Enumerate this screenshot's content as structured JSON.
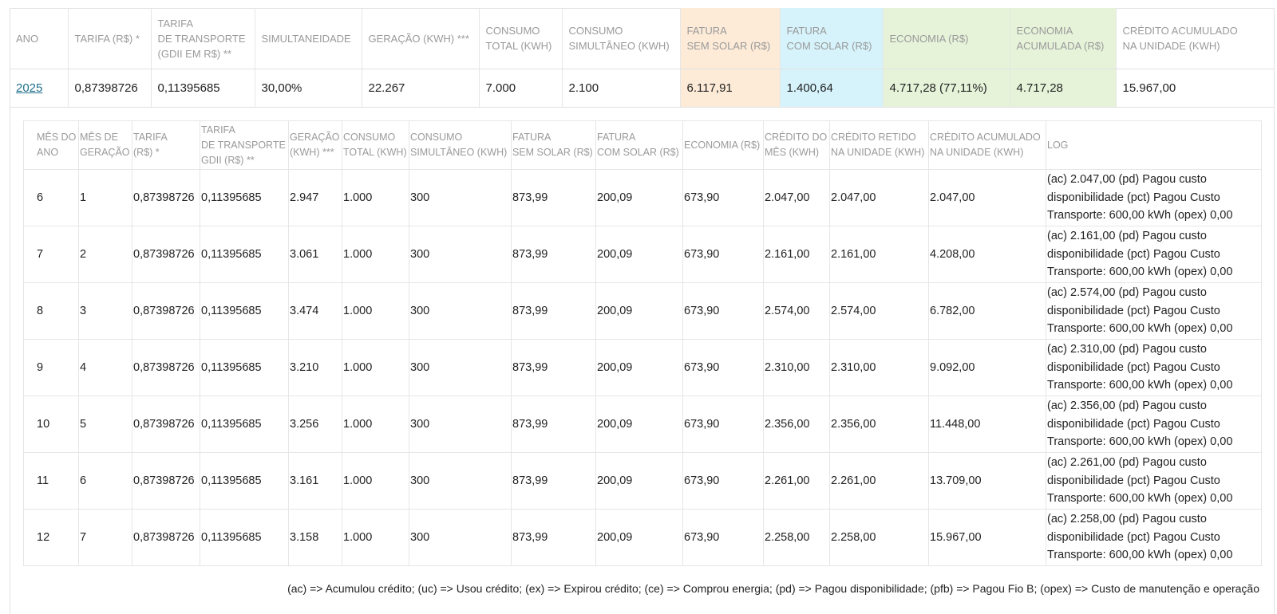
{
  "summary": {
    "headers": [
      "ANO",
      "TARIFA (R$) *",
      "TARIFA\nDE TRANSPORTE\n(GDII EM R$) **",
      "SIMULTANEIDADE",
      "GERAÇÃO (KWH) ***",
      "CONSUMO\nTOTAL (KWH)",
      "CONSUMO\nSIMULTÂNEO (KWH)",
      "FATURA\nSEM SOLAR (R$)",
      "FATURA\nCOM SOLAR (R$)",
      "ECONOMIA (R$)",
      "ECONOMIA\nACUMULADA (R$)",
      "CRÉDITO ACUMULADO\nNA UNIDADE (KWH)"
    ],
    "row": [
      "2025",
      "0,87398726",
      "0,11395685",
      "30,00%",
      "22.267",
      "7.000",
      "2.100",
      "6.117,91",
      "1.400,64",
      "4.717,28 (77,11%)",
      "4.717,28",
      "15.967,00"
    ],
    "highlight_colors": {
      "fatura_sem_solar": "#fdebd8",
      "fatura_com_solar": "#d6f3fb",
      "economia": "#e6f3d9"
    }
  },
  "detail": {
    "headers": [
      "MÊS DO\nANO",
      "MÊS DE\nGERAÇÃO",
      "TARIFA\n(R$) *",
      "TARIFA\nDE TRANSPORTE\nGDII (R$) **",
      "GERAÇÃO\n(KWH) ***",
      "CONSUMO\nTOTAL (KWH)",
      "CONSUMO\nSIMULTÂNEO (KWH)",
      "FATURA\nSEM SOLAR (R$)",
      "FATURA\nCOM SOLAR (R$)",
      "ECONOMIA (R$)",
      "CRÉDITO DO\nMÊS (KWH)",
      "CRÉDITO RETIDO\nNA UNIDADE (KWH)",
      "CRÉDITO ACUMULADO\nNA UNIDADE (KWH)",
      "LOG"
    ],
    "rows": [
      [
        "6",
        "1",
        "0,87398726",
        "0,11395685",
        "2.947",
        "1.000",
        "300",
        "873,99",
        "200,09",
        "673,90",
        "2.047,00",
        "2.047,00",
        "2.047,00",
        "(ac) 2.047,00 (pd) Pagou custo disponibilidade (pct) Pagou Custo Transporte: 600,00 kWh (opex) 0,00"
      ],
      [
        "7",
        "2",
        "0,87398726",
        "0,11395685",
        "3.061",
        "1.000",
        "300",
        "873,99",
        "200,09",
        "673,90",
        "2.161,00",
        "2.161,00",
        "4.208,00",
        "(ac) 2.161,00 (pd) Pagou custo disponibilidade (pct) Pagou Custo Transporte: 600,00 kWh (opex) 0,00"
      ],
      [
        "8",
        "3",
        "0,87398726",
        "0,11395685",
        "3.474",
        "1.000",
        "300",
        "873,99",
        "200,09",
        "673,90",
        "2.574,00",
        "2.574,00",
        "6.782,00",
        "(ac) 2.574,00 (pd) Pagou custo disponibilidade (pct) Pagou Custo Transporte: 600,00 kWh (opex) 0,00"
      ],
      [
        "9",
        "4",
        "0,87398726",
        "0,11395685",
        "3.210",
        "1.000",
        "300",
        "873,99",
        "200,09",
        "673,90",
        "2.310,00",
        "2.310,00",
        "9.092,00",
        "(ac) 2.310,00 (pd) Pagou custo disponibilidade (pct) Pagou Custo Transporte: 600,00 kWh (opex) 0,00"
      ],
      [
        "10",
        "5",
        "0,87398726",
        "0,11395685",
        "3.256",
        "1.000",
        "300",
        "873,99",
        "200,09",
        "673,90",
        "2.356,00",
        "2.356,00",
        "11.448,00",
        "(ac) 2.356,00 (pd) Pagou custo disponibilidade (pct) Pagou Custo Transporte: 600,00 kWh (opex) 0,00"
      ],
      [
        "11",
        "6",
        "0,87398726",
        "0,11395685",
        "3.161",
        "1.000",
        "300",
        "873,99",
        "200,09",
        "673,90",
        "2.261,00",
        "2.261,00",
        "13.709,00",
        "(ac) 2.261,00 (pd) Pagou custo disponibilidade (pct) Pagou Custo Transporte: 600,00 kWh (opex) 0,00"
      ],
      [
        "12",
        "7",
        "0,87398726",
        "0,11395685",
        "3.158",
        "1.000",
        "300",
        "873,99",
        "200,09",
        "673,90",
        "2.258,00",
        "2.258,00",
        "15.967,00",
        "(ac) 2.258,00 (pd) Pagou custo disponibilidade (pct) Pagou Custo Transporte: 600,00 kWh (opex) 0,00"
      ]
    ]
  },
  "legend": "(ac) => Acumulou crédito; (uc) => Usou crédito; (ex) => Expirou crédito; (ce) => Comprou energia; (pd) => Pagou disponibilidade; (pfb) => Pagou Fio B; (opex) => Custo de manutenção e operação"
}
